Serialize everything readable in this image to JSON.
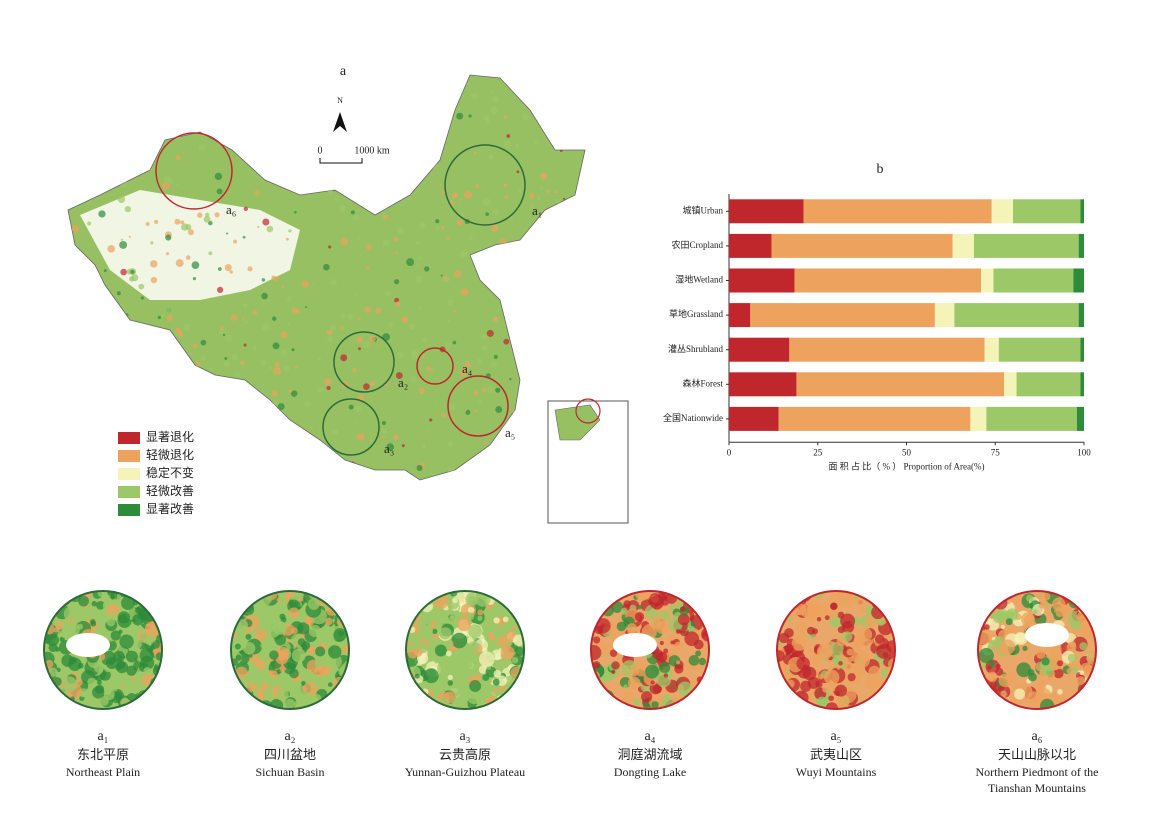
{
  "chart_data": {
    "type": "stacked-bar-horizontal",
    "title": "b",
    "x_label": "面 积 占 比（ % ） Proportion of Area(%)",
    "categories": [
      "城镇Urban",
      "农田Cropland",
      "湿地Wetland",
      "草地Grassland",
      "灌丛Shrubland",
      "森林Forest",
      "全国Nationwide"
    ],
    "series": [
      {
        "name": "显著退化",
        "color": "#c0272d",
        "values": [
          21,
          12,
          18.5,
          6,
          17,
          19,
          14
        ]
      },
      {
        "name": "轻微退化",
        "color": "#eda35e",
        "values": [
          53,
          51,
          52.5,
          52,
          55,
          58.5,
          54
        ]
      },
      {
        "name": "稳定不变",
        "color": "#f4f3b8",
        "values": [
          6,
          6,
          3.5,
          5.5,
          4,
          3.5,
          4.5
        ]
      },
      {
        "name": "轻微改善",
        "color": "#9cc867",
        "values": [
          19,
          29.5,
          22.5,
          35,
          23,
          18,
          25.5
        ]
      },
      {
        "name": "显著改善",
        "color": "#2e8b3a",
        "values": [
          1,
          1.5,
          3,
          1.5,
          1,
          1,
          2
        ]
      }
    ],
    "xlim": [
      0,
      100
    ],
    "xticks": [
      0,
      25,
      50,
      75,
      100
    ]
  },
  "map": {
    "title": "a",
    "north": "N",
    "scale": [
      "0",
      "1000 km"
    ],
    "circles": [
      "a₁",
      "a₂",
      "a₃",
      "a₄",
      "a₅",
      "a₆"
    ]
  },
  "insets": [
    {
      "label": "a₁",
      "chinese": "东北平原",
      "english": [
        "Northeast Plain"
      ]
    },
    {
      "label": "a₂",
      "chinese": "四川盆地",
      "english": [
        "Sichuan Basin"
      ]
    },
    {
      "label": "a₃",
      "chinese": "云贵高原",
      "english": [
        "Yunnan-Guizhou Plateau"
      ]
    },
    {
      "label": "a₄",
      "chinese": "洞庭湖流域",
      "english": [
        "Dongting Lake"
      ]
    },
    {
      "label": "a₅",
      "chinese": "武夷山区",
      "english": [
        "Wuyi Mountains"
      ]
    },
    {
      "label": "a₆",
      "chinese": "天山山脉以北",
      "english": [
        "Northern Piedmont of the",
        "Tianshan Mountains"
      ]
    }
  ]
}
